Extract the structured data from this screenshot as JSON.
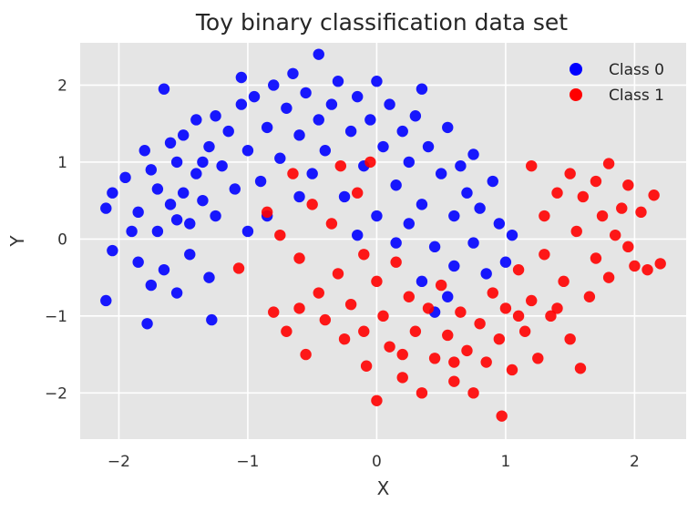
{
  "chart_data": {
    "type": "scatter",
    "title": "Toy binary classification data set",
    "xlabel": "X",
    "ylabel": "Y",
    "xlim": [
      -2.3,
      2.4
    ],
    "ylim": [
      -2.6,
      2.55
    ],
    "xticks": [
      -2,
      -1,
      0,
      1,
      2
    ],
    "yticks": [
      -2,
      -1,
      0,
      1,
      2
    ],
    "xtick_labels": [
      "−2",
      "−1",
      "0",
      "1",
      "2"
    ],
    "ytick_labels": [
      "−2",
      "−1",
      "0",
      "1",
      "2"
    ],
    "grid": true,
    "legend_position": "top-right",
    "background": "#e5e5e5",
    "series": [
      {
        "name": "Class 0",
        "color": "#0000ff",
        "points": [
          [
            -2.05,
            0.6
          ],
          [
            -2.1,
            0.4
          ],
          [
            -2.05,
            -0.15
          ],
          [
            -2.1,
            -0.8
          ],
          [
            -1.95,
            0.8
          ],
          [
            -1.9,
            0.1
          ],
          [
            -1.85,
            -0.3
          ],
          [
            -1.85,
            0.35
          ],
          [
            -1.8,
            1.15
          ],
          [
            -1.75,
            0.9
          ],
          [
            -1.75,
            -0.6
          ],
          [
            -1.78,
            -1.1
          ],
          [
            -1.7,
            0.65
          ],
          [
            -1.7,
            0.1
          ],
          [
            -1.65,
            1.95
          ],
          [
            -1.65,
            -0.4
          ],
          [
            -1.6,
            0.45
          ],
          [
            -1.55,
            1.0
          ],
          [
            -1.55,
            -0.7
          ],
          [
            -1.5,
            0.6
          ],
          [
            -1.5,
            1.35
          ],
          [
            -1.45,
            0.2
          ],
          [
            -1.45,
            -0.2
          ],
          [
            -1.4,
            1.55
          ],
          [
            -1.4,
            0.85
          ],
          [
            -1.35,
            0.5
          ],
          [
            -1.3,
            1.2
          ],
          [
            -1.3,
            -0.5
          ],
          [
            -1.28,
            -1.05
          ],
          [
            -1.25,
            1.6
          ],
          [
            -1.25,
            0.3
          ],
          [
            -1.2,
            0.95
          ],
          [
            -1.15,
            1.4
          ],
          [
            -1.1,
            0.65
          ],
          [
            -1.05,
            2.1
          ],
          [
            -1.05,
            1.75
          ],
          [
            -1.0,
            0.1
          ],
          [
            -1.0,
            1.15
          ],
          [
            -0.95,
            1.85
          ],
          [
            -0.9,
            0.75
          ],
          [
            -0.85,
            1.45
          ],
          [
            -0.85,
            0.3
          ],
          [
            -0.8,
            2.0
          ],
          [
            -0.75,
            1.05
          ],
          [
            -0.7,
            1.7
          ],
          [
            -0.65,
            2.15
          ],
          [
            -0.6,
            0.55
          ],
          [
            -0.6,
            1.35
          ],
          [
            -0.55,
            1.9
          ],
          [
            -0.5,
            0.85
          ],
          [
            -0.45,
            2.4
          ],
          [
            -0.45,
            1.55
          ],
          [
            -0.4,
            1.15
          ],
          [
            -0.35,
            1.75
          ],
          [
            -0.3,
            2.05
          ],
          [
            -0.25,
            0.55
          ],
          [
            -0.2,
            1.4
          ],
          [
            -0.15,
            1.85
          ],
          [
            -0.1,
            0.95
          ],
          [
            -0.05,
            1.55
          ],
          [
            0.0,
            2.05
          ],
          [
            0.0,
            0.3
          ],
          [
            0.05,
            1.2
          ],
          [
            0.1,
            1.75
          ],
          [
            0.15,
            0.7
          ],
          [
            0.2,
            1.4
          ],
          [
            0.25,
            0.2
          ],
          [
            0.25,
            1.0
          ],
          [
            0.3,
            1.6
          ],
          [
            0.35,
            1.95
          ],
          [
            0.35,
            0.45
          ],
          [
            0.4,
            1.2
          ],
          [
            0.45,
            -0.1
          ],
          [
            0.5,
            0.85
          ],
          [
            0.55,
            1.45
          ],
          [
            0.6,
            0.3
          ],
          [
            0.6,
            -0.35
          ],
          [
            0.65,
            0.95
          ],
          [
            0.7,
            0.6
          ],
          [
            0.75,
            1.1
          ],
          [
            0.75,
            -0.05
          ],
          [
            0.8,
            0.4
          ],
          [
            0.85,
            -0.45
          ],
          [
            0.9,
            0.75
          ],
          [
            0.95,
            0.2
          ],
          [
            1.0,
            -0.3
          ],
          [
            1.05,
            0.05
          ],
          [
            0.55,
            -0.75
          ],
          [
            0.45,
            -0.95
          ],
          [
            0.35,
            -0.55
          ],
          [
            0.15,
            -0.05
          ],
          [
            -0.15,
            0.05
          ],
          [
            -1.55,
            0.25
          ],
          [
            -1.6,
            1.25
          ],
          [
            -1.35,
            1.0
          ]
        ]
      },
      {
        "name": "Class 1",
        "color": "#ff0000",
        "points": [
          [
            -1.07,
            -0.38
          ],
          [
            -0.85,
            0.35
          ],
          [
            -0.8,
            -0.95
          ],
          [
            -0.75,
            0.05
          ],
          [
            -0.7,
            -1.2
          ],
          [
            -0.65,
            0.85
          ],
          [
            -0.6,
            -0.25
          ],
          [
            -0.55,
            -1.5
          ],
          [
            -0.5,
            0.45
          ],
          [
            -0.45,
            -0.7
          ],
          [
            -0.4,
            -1.05
          ],
          [
            -0.35,
            0.2
          ],
          [
            -0.3,
            -0.45
          ],
          [
            -0.28,
            0.95
          ],
          [
            -0.25,
            -1.3
          ],
          [
            -0.2,
            -0.85
          ],
          [
            -0.15,
            0.6
          ],
          [
            -0.1,
            -0.2
          ],
          [
            -0.08,
            -1.65
          ],
          [
            -0.05,
            1.0
          ],
          [
            0.0,
            -0.55
          ],
          [
            0.0,
            -2.1
          ],
          [
            0.05,
            -1.0
          ],
          [
            0.1,
            -1.4
          ],
          [
            0.15,
            -0.3
          ],
          [
            0.2,
            -1.8
          ],
          [
            0.25,
            -0.75
          ],
          [
            0.3,
            -1.2
          ],
          [
            0.35,
            -2.0
          ],
          [
            0.4,
            -0.9
          ],
          [
            0.45,
            -1.55
          ],
          [
            0.5,
            -0.6
          ],
          [
            0.55,
            -1.25
          ],
          [
            0.6,
            -1.85
          ],
          [
            0.65,
            -0.95
          ],
          [
            0.7,
            -1.45
          ],
          [
            0.75,
            -2.0
          ],
          [
            0.8,
            -1.1
          ],
          [
            0.85,
            -1.6
          ],
          [
            0.9,
            -0.7
          ],
          [
            0.95,
            -1.3
          ],
          [
            0.97,
            -2.3
          ],
          [
            1.0,
            -0.9
          ],
          [
            1.05,
            -1.7
          ],
          [
            1.1,
            -0.4
          ],
          [
            1.15,
            -1.2
          ],
          [
            1.2,
            0.95
          ],
          [
            1.2,
            -0.8
          ],
          [
            1.25,
            -1.55
          ],
          [
            1.3,
            0.3
          ],
          [
            1.3,
            -0.2
          ],
          [
            1.35,
            -1.0
          ],
          [
            1.4,
            0.6
          ],
          [
            1.45,
            -0.55
          ],
          [
            1.5,
            0.85
          ],
          [
            1.5,
            -1.3
          ],
          [
            1.55,
            0.1
          ],
          [
            1.58,
            -1.68
          ],
          [
            1.6,
            0.55
          ],
          [
            1.65,
            -0.75
          ],
          [
            1.7,
            0.75
          ],
          [
            1.7,
            -0.25
          ],
          [
            1.75,
            0.3
          ],
          [
            1.8,
            0.98
          ],
          [
            1.8,
            -0.5
          ],
          [
            1.85,
            0.05
          ],
          [
            1.9,
            0.4
          ],
          [
            1.95,
            -0.1
          ],
          [
            2.0,
            -0.35
          ],
          [
            2.05,
            0.35
          ],
          [
            2.1,
            -0.4
          ],
          [
            2.15,
            0.57
          ],
          [
            2.2,
            -0.32
          ],
          [
            1.95,
            0.7
          ],
          [
            1.4,
            -0.9
          ],
          [
            1.1,
            -1.0
          ],
          [
            0.6,
            -1.6
          ],
          [
            0.2,
            -1.5
          ],
          [
            -0.1,
            -1.2
          ],
          [
            -0.6,
            -0.9
          ]
        ]
      }
    ]
  }
}
